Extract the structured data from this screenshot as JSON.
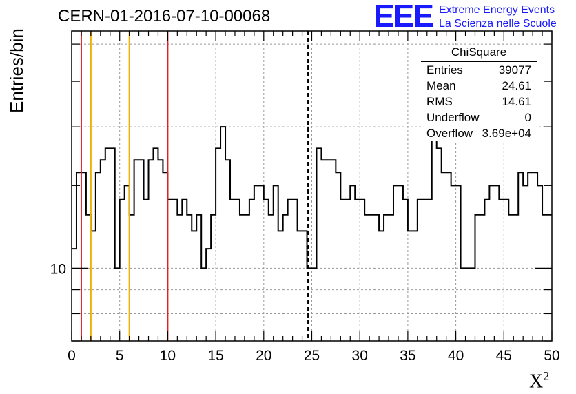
{
  "header": {
    "title": "CERN-01-2016-07-10-00068",
    "logo_text": "EEE",
    "logo_line1": "Extreme Energy Events",
    "logo_line2": "La Scienza nelle Scuole"
  },
  "axes": {
    "ylabel": "Entries/bin",
    "xlabel": "X",
    "xlabel_sup": "2"
  },
  "stats": {
    "title": "ChiSquare",
    "rows": [
      {
        "key": "Entries",
        "value": "39077"
      },
      {
        "key": "Mean",
        "value": "24.61"
      },
      {
        "key": "RMS",
        "value": "14.61"
      },
      {
        "key": "Underflow",
        "value": "0"
      },
      {
        "key": "Overflow",
        "value": "3.69e+04"
      }
    ]
  },
  "chart_data": {
    "type": "histogram",
    "title": "CERN-01-2016-07-10-00068",
    "xlabel": "X²",
    "ylabel": "Entries/bin",
    "xlim": [
      0,
      50
    ],
    "ylim": [
      7.0,
      32.0
    ],
    "yscale": "log",
    "xticks": [
      0,
      5,
      10,
      15,
      20,
      25,
      30,
      35,
      40,
      45,
      50
    ],
    "yticks_labeled": [
      10
    ],
    "grid": true,
    "bin_width": 0.5,
    "values": [
      11,
      16,
      16,
      13,
      12,
      16,
      17,
      18,
      18,
      10,
      14,
      15,
      13,
      17,
      17,
      14,
      17,
      18,
      17,
      16,
      14,
      14,
      13,
      14,
      13,
      12,
      13,
      10,
      11,
      13,
      18,
      20,
      17,
      14,
      14,
      13,
      13,
      14,
      15,
      15,
      14,
      13,
      15,
      12,
      13,
      14,
      14,
      12,
      12,
      10,
      10,
      18,
      17,
      17,
      17,
      16,
      14,
      14,
      15,
      14,
      14,
      13,
      13,
      13,
      12,
      13,
      13,
      15,
      15,
      14,
      12,
      12,
      14,
      14,
      14,
      19,
      18,
      16,
      16,
      15,
      15,
      10,
      10,
      10,
      13,
      13,
      14,
      15,
      15,
      14,
      14,
      13,
      13,
      16,
      15,
      16,
      16,
      15,
      13,
      13
    ],
    "vlines": [
      {
        "x": 1,
        "color": "#dd2222",
        "style": "solid"
      },
      {
        "x": 2,
        "color": "#f0b000",
        "style": "solid"
      },
      {
        "x": 6,
        "color": "#f0b000",
        "style": "solid"
      },
      {
        "x": 10,
        "color": "#dd2222",
        "style": "solid"
      },
      {
        "x": 24.61,
        "color": "#000000",
        "style": "dashed"
      }
    ]
  }
}
